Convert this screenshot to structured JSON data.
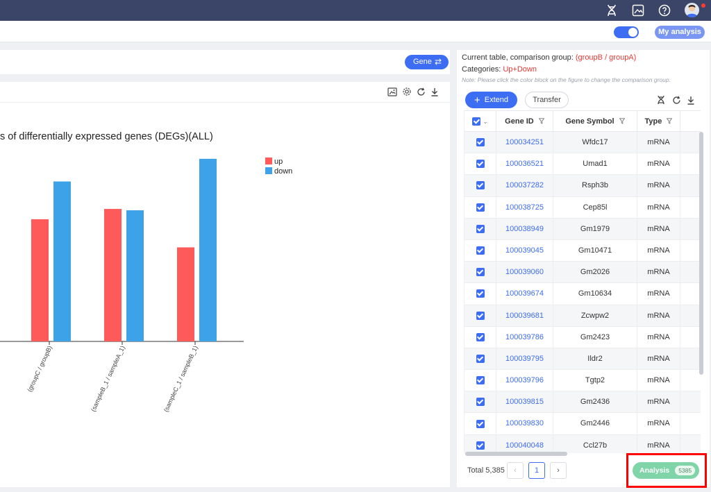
{
  "topbar": {
    "icons": [
      "dna-icon",
      "image-icon",
      "help-icon",
      "user-avatar"
    ]
  },
  "header": {
    "my_analysis_label": "My analysis",
    "toggle_on": true
  },
  "left": {
    "gene_button_label": "Gene",
    "chart_title": "s of differentially expressed genes (DEGs)(ALL)"
  },
  "chart_data": {
    "type": "bar",
    "title": "s of differentially expressed genes (DEGs)(ALL)",
    "categories": [
      "(groupC / groupB)",
      "(sampleB_1 / sampleA_1)",
      "(sampleC_1 / sampleB_1)"
    ],
    "series": [
      {
        "name": "up",
        "color": "#ff5a5a",
        "values": [
          178,
          193,
          137
        ]
      },
      {
        "name": "down",
        "color": "#3ea2e8",
        "values": [
          233,
          191,
          266
        ]
      }
    ],
    "ylim": [
      0,
      280
    ],
    "legend": "top-right",
    "grid": false
  },
  "right": {
    "current_table_label": "Current table, comparison group:",
    "comparison_group": "(groupB / groupA)",
    "categories_label": "Categories:",
    "categories_value": "Up+Down",
    "note": "Note: Please click the color block on the figure to change the comparison group.",
    "extend_label": "Extend",
    "transfer_label": "Transfer",
    "columns": [
      "Gene ID",
      "Gene Symbol",
      "Type"
    ],
    "rows": [
      {
        "id": "100034251",
        "symbol": "Wfdc17",
        "type": "mRNA"
      },
      {
        "id": "100036521",
        "symbol": "Umad1",
        "type": "mRNA"
      },
      {
        "id": "100037282",
        "symbol": "Rsph3b",
        "type": "mRNA"
      },
      {
        "id": "100038725",
        "symbol": "Cep85l",
        "type": "mRNA"
      },
      {
        "id": "100038949",
        "symbol": "Gm1979",
        "type": "mRNA"
      },
      {
        "id": "100039045",
        "symbol": "Gm10471",
        "type": "mRNA"
      },
      {
        "id": "100039060",
        "symbol": "Gm2026",
        "type": "mRNA"
      },
      {
        "id": "100039674",
        "symbol": "Gm10634",
        "type": "mRNA"
      },
      {
        "id": "100039681",
        "symbol": "Zcwpw2",
        "type": "mRNA"
      },
      {
        "id": "100039786",
        "symbol": "Gm2423",
        "type": "mRNA"
      },
      {
        "id": "100039795",
        "symbol": "Ildr2",
        "type": "mRNA"
      },
      {
        "id": "100039796",
        "symbol": "Tgtp2",
        "type": "mRNA"
      },
      {
        "id": "100039815",
        "symbol": "Gm2436",
        "type": "mRNA"
      },
      {
        "id": "100039830",
        "symbol": "Gm2446",
        "type": "mRNA"
      },
      {
        "id": "100040048",
        "symbol": "Ccl27b",
        "type": "mRNA"
      }
    ],
    "total_label": "Total 5,385",
    "current_page": "1",
    "analysis_label": "Analysis",
    "analysis_count": "5385"
  }
}
